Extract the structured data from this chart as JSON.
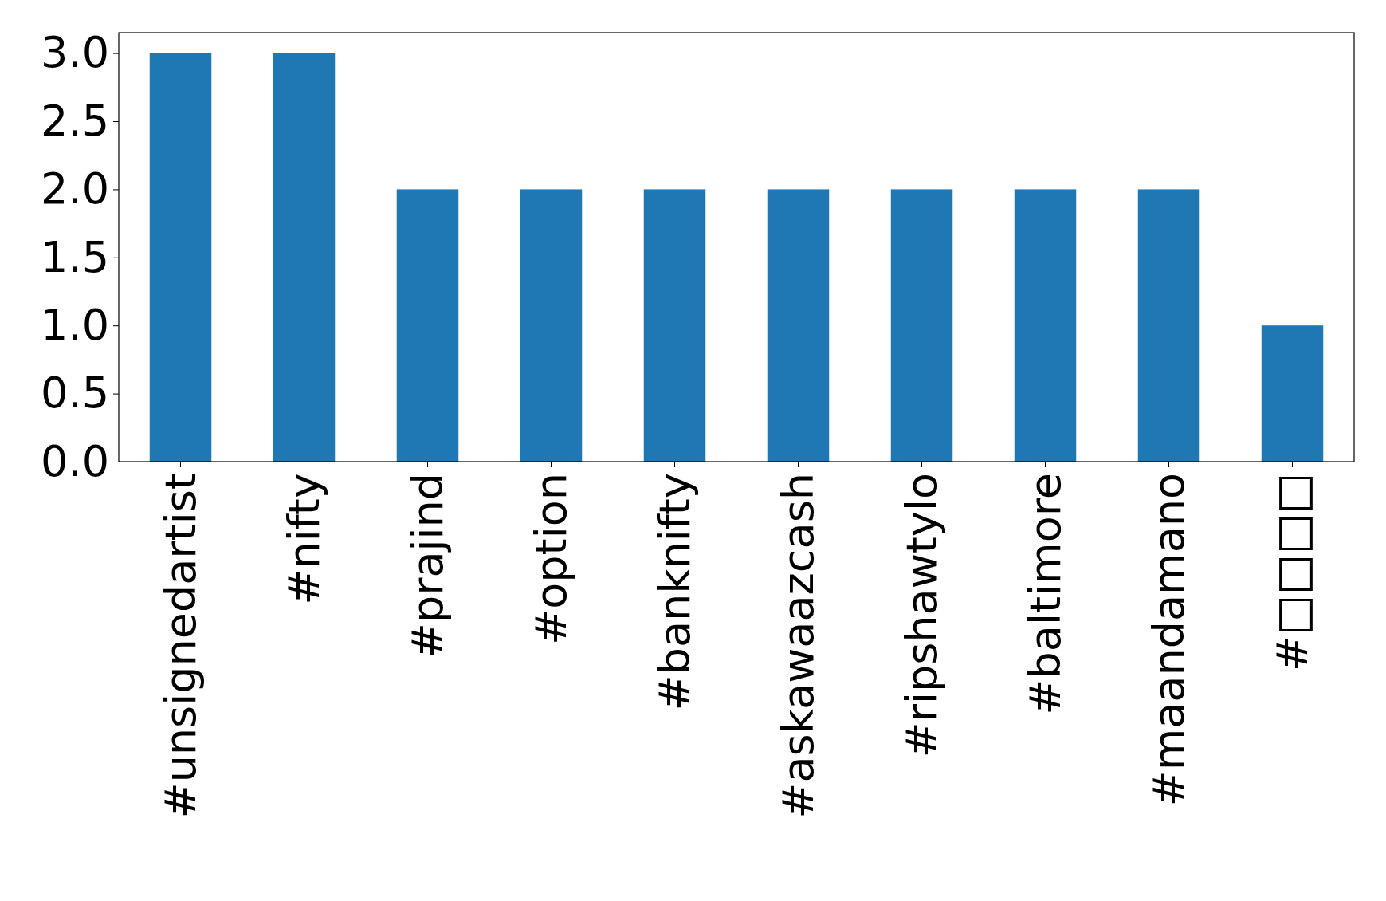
{
  "chart_data": {
    "type": "bar",
    "categories": [
      "#unsignedartist",
      "#nifty",
      "#prajind",
      "#option",
      "#banknifty",
      "#askawaazcash",
      "#ripshawtylo",
      "#baltimore",
      "#maandamano",
      "#□□□□"
    ],
    "values": [
      3,
      3,
      2,
      2,
      2,
      2,
      2,
      2,
      2,
      1
    ],
    "color": "#1f77b4",
    "ylim": [
      0,
      3.15
    ],
    "yticks": [
      {
        "value": 0,
        "label": "0.0"
      },
      {
        "value": 0.5,
        "label": "0.5"
      },
      {
        "value": 1,
        "label": "1.0"
      },
      {
        "value": 1.5,
        "label": "1.5"
      },
      {
        "value": 2,
        "label": "2.0"
      },
      {
        "value": 2.5,
        "label": "2.5"
      },
      {
        "value": 3,
        "label": "3.0"
      }
    ],
    "grid": false
  }
}
